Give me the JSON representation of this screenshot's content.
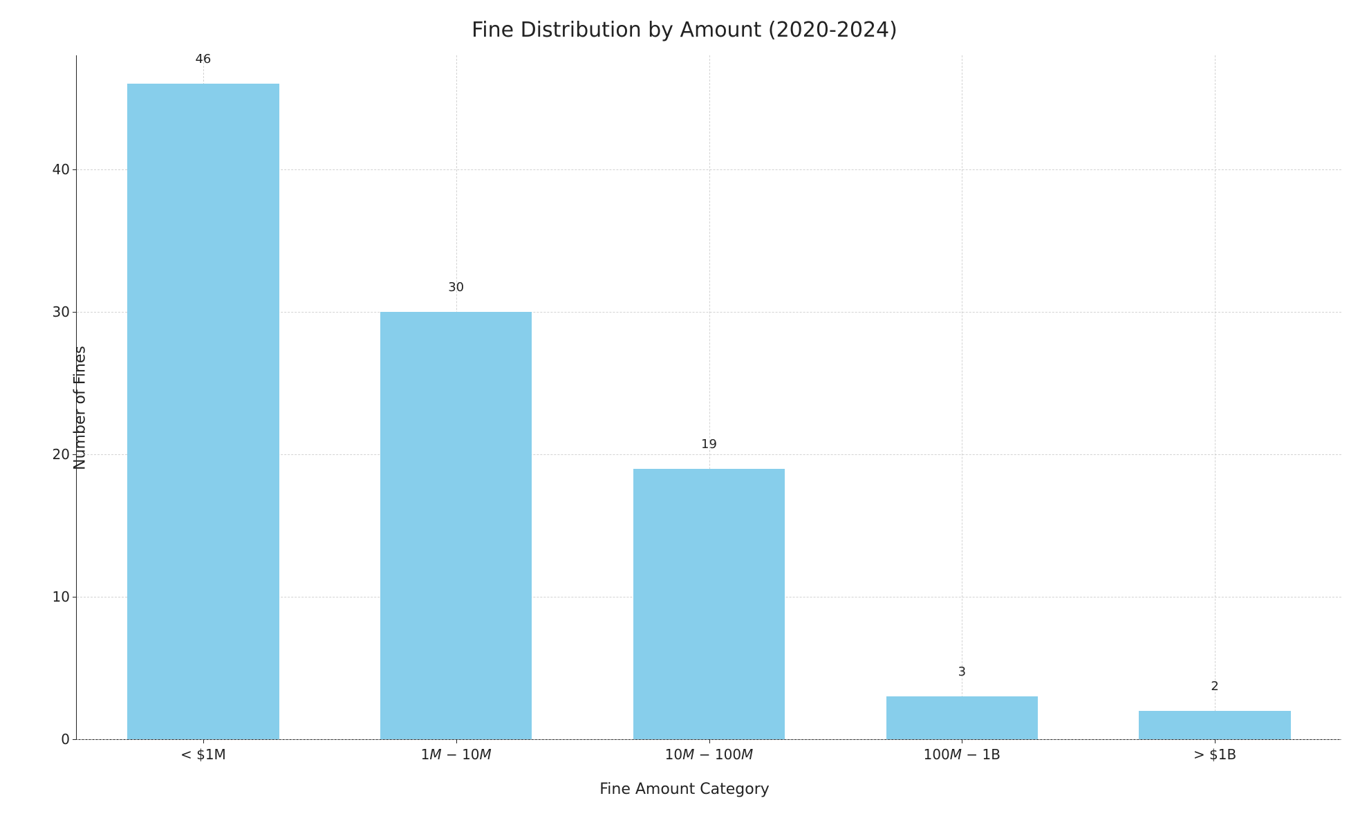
{
  "chart": {
    "type": "bar",
    "title": "Fine Distribution by Amount (2020-2024)",
    "title_fontsize": 30,
    "xlabel": "Fine Amount Category",
    "ylabel": "Number of Fines",
    "label_fontsize": 22,
    "tick_fontsize": 20,
    "barlabel_fontsize": 18,
    "categories": [
      "< $1M",
      "1M − 10M",
      "10M − 100M",
      "100M − 1B",
      "> $1B"
    ],
    "category_styles": [
      "plain",
      "italic-mixed",
      "italic-mixed",
      "italic-mixed",
      "plain"
    ],
    "values": [
      46,
      30,
      19,
      3,
      2
    ],
    "bar_color": "#87ceeb",
    "bar_width": 0.6,
    "ylim": [
      0,
      48
    ],
    "yticks": [
      0,
      10,
      20,
      30,
      40
    ],
    "background_color": "#ffffff",
    "grid_color": "#bfbfbf",
    "axis_color": "#222222",
    "grid_style": "dashed",
    "grid_alpha": 0.7,
    "spines": {
      "left": true,
      "bottom": true,
      "top": false,
      "right": false
    }
  }
}
